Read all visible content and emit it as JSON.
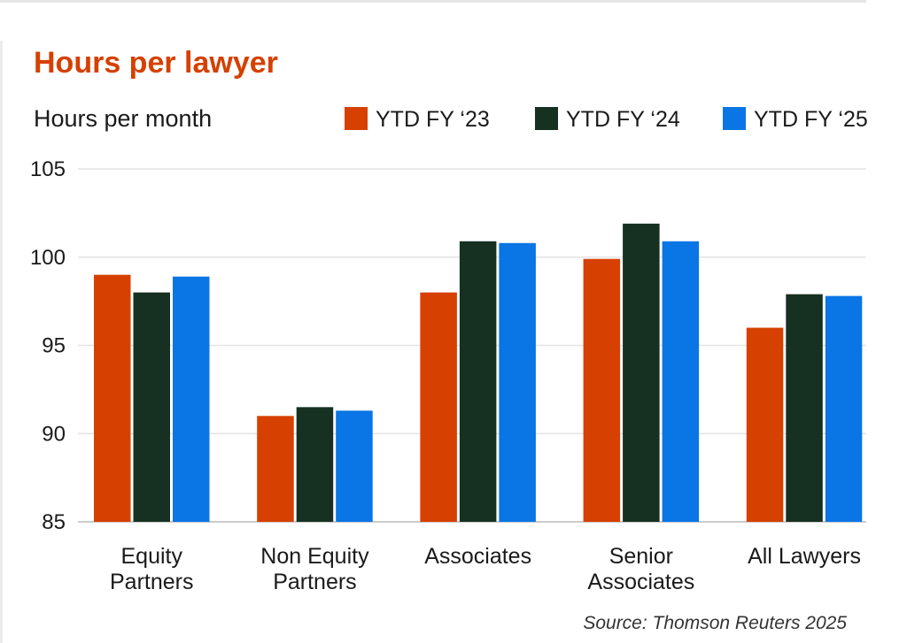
{
  "chart_data": {
    "type": "bar",
    "title": "Hours per lawyer",
    "subtitle": "Hours per month",
    "source": "Source: Thomson Reuters 2025",
    "categories": [
      [
        "Equity",
        "Partners"
      ],
      [
        "Non Equity",
        "Partners"
      ],
      [
        "Associates"
      ],
      [
        "Senior",
        "Associates"
      ],
      [
        "All Lawyers"
      ]
    ],
    "series": [
      {
        "name": "YTD FY ‘23",
        "color": "#d64000",
        "values": [
          99,
          91,
          98,
          99.9,
          96
        ]
      },
      {
        "name": "YTD FY ‘24",
        "color": "#163022",
        "values": [
          98,
          91.5,
          100.9,
          101.9,
          97.9
        ]
      },
      {
        "name": "YTD FY ‘25",
        "color": "#0a75e4",
        "values": [
          98.9,
          91.3,
          100.8,
          100.9,
          97.8
        ]
      }
    ],
    "yticks": [
      85,
      90,
      95,
      100,
      105
    ],
    "ylim": [
      85,
      105
    ],
    "grid": true,
    "legend": "top-right",
    "colors": {
      "title": "#d64000",
      "text": "#1a1a1a",
      "grid": "#e3e3e3",
      "axis": "#cccccc",
      "source": "#333333"
    }
  }
}
